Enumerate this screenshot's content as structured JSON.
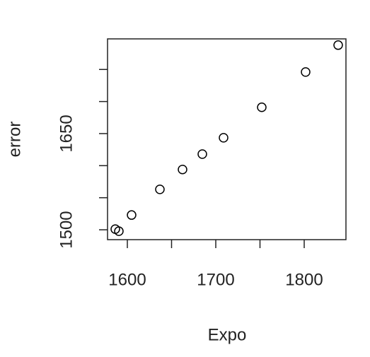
{
  "chart_data": {
    "type": "scatter",
    "xlabel": "Expo",
    "ylabel": "error",
    "x": [
      1586.4,
      1590.4,
      1604.8,
      1636.8,
      1662.4,
      1684.8,
      1708.8,
      1752,
      1801.6,
      1838.4
    ],
    "values": [
      1501,
      1497.8,
      1523,
      1563,
      1594,
      1618,
      1643.5,
      1691,
      1746,
      1788
    ],
    "color": "#000000",
    "xlim": [
      1577.6,
      1847.2
    ],
    "ylim": [
      1484.6,
      1797.7
    ],
    "xticks": [
      1600,
      1700,
      1800
    ],
    "xminor_ticks": [
      1650,
      1750
    ],
    "yticks": [
      1500,
      1650
    ],
    "yminor_ticks": [
      1550,
      1600,
      1700,
      1750
    ]
  }
}
